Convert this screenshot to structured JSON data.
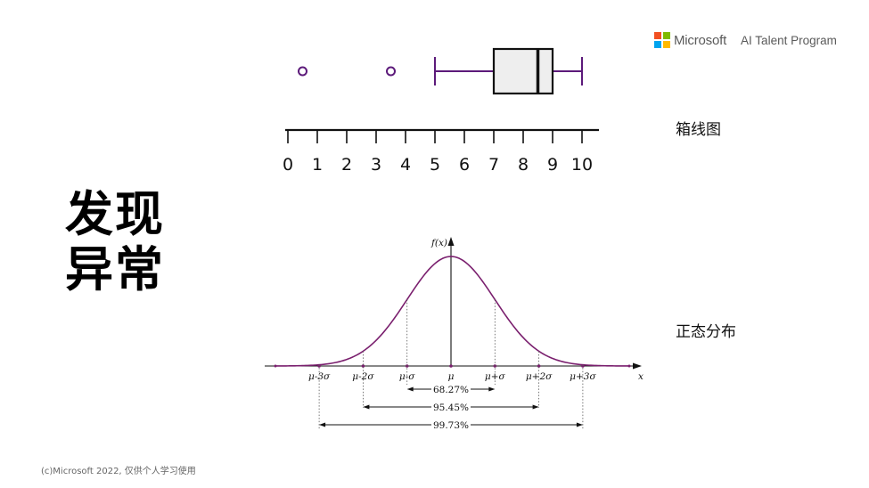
{
  "header": {
    "brand": "Microsoft",
    "program": "AI Talent Program",
    "logo_colors": [
      "#f25022",
      "#7fba00",
      "#00a4ef",
      "#ffb900"
    ]
  },
  "title_lines": [
    "发现",
    "异常"
  ],
  "labels": {
    "boxplot": "箱线图",
    "normal": "正态分布"
  },
  "footer": "(c)Microsoft 2022, 仅供个人学习使用",
  "colors": {
    "purple": "#5c1a7a",
    "curve": "#7a1f6e",
    "box_fill": "#eeeeee"
  },
  "chart_data": [
    {
      "type": "boxplot",
      "axis_ticks": [
        "0",
        "1",
        "2",
        "3",
        "4",
        "5",
        "6",
        "7",
        "8",
        "9",
        "10"
      ],
      "xlim": [
        0,
        10
      ],
      "whisker_low": 5,
      "q1": 7,
      "median": 8.5,
      "q3": 9,
      "whisker_high": 10,
      "outliers": [
        0.5,
        3.5
      ]
    },
    {
      "type": "line",
      "function": "normal_pdf",
      "ylabel": "f(x)",
      "xlabel": "x",
      "x_ticks": [
        "μ-3σ",
        "μ-2σ",
        "μ-σ",
        "μ",
        "μ+σ",
        "μ+2σ",
        "μ+3σ"
      ],
      "intervals": [
        {
          "label": "68.27%",
          "from_sigma": -1,
          "to_sigma": 1
        },
        {
          "label": "95.45%",
          "from_sigma": -2,
          "to_sigma": 2
        },
        {
          "label": "99.73%",
          "from_sigma": -3,
          "to_sigma": 3
        }
      ]
    }
  ]
}
